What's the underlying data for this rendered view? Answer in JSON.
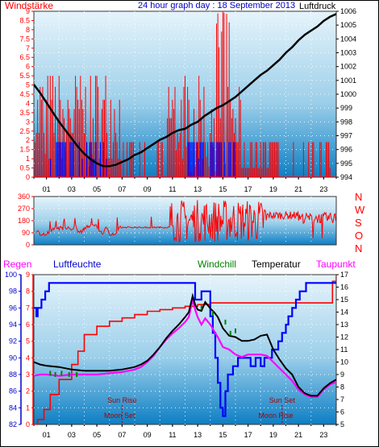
{
  "title": "24 hour graph day : 18 September 2013",
  "x_ticks": [
    "01",
    "03",
    "05",
    "07",
    "09",
    "11",
    "13",
    "15",
    "17",
    "19",
    "21",
    "23"
  ],
  "colors": {
    "panel_top": "#e6f4fb",
    "panel_bottom": "#0d7fc4",
    "wind_gust": "#ff0000",
    "wind_avg": "#0000ff",
    "pressure": "#000000",
    "direction": "#ff0000",
    "humidity": "#0000ff",
    "windchill": "#008000",
    "temperature": "#000000",
    "dewpoint": "#ff00ff",
    "rain": "#ff0000",
    "astro": "#aa0000",
    "axis_red": "#ff0000",
    "axis_blue": "#0000cc",
    "axis_black": "#000000"
  },
  "chart_data": [
    {
      "type": "bar",
      "left_label": "Windstärke",
      "right_label": "Luftdruck",
      "x_range": [
        0,
        24
      ],
      "y_left_range": [
        0,
        9
      ],
      "y_left_ticks": [
        "0",
        "0.5",
        "1",
        "1.5",
        "2",
        "2.5",
        "3",
        "3.5",
        "4",
        "4.5",
        "5",
        "5.5",
        "6",
        "6.5",
        "7",
        "7.5",
        "8",
        "8.5",
        "9"
      ],
      "y_right_range": [
        994,
        1006
      ],
      "y_right_ticks": [
        "994",
        "995",
        "996",
        "997",
        "998",
        "999",
        "1000",
        "1001",
        "1002",
        "1003",
        "1004",
        "1005",
        "1006"
      ],
      "pressure": {
        "x": [
          0,
          0.5,
          1,
          1.5,
          2,
          2.5,
          3,
          3.5,
          4,
          4.5,
          5,
          5.5,
          6,
          6.5,
          7,
          7.5,
          8,
          8.5,
          9,
          9.5,
          10,
          10.5,
          11,
          11.5,
          12,
          12.5,
          13,
          13.5,
          14,
          14.5,
          15,
          15.5,
          16,
          16.5,
          17,
          17.5,
          18,
          18.5,
          19,
          19.5,
          20,
          20.5,
          21,
          21.5,
          22,
          22.5,
          23,
          23.5,
          24
        ],
        "y": [
          1000.7,
          1000.1,
          999.4,
          998.7,
          998.0,
          997.4,
          996.8,
          996.2,
          995.7,
          995.3,
          995.0,
          994.8,
          994.8,
          994.9,
          995.1,
          995.3,
          995.6,
          995.8,
          996.1,
          996.4,
          996.7,
          996.9,
          997.2,
          997.4,
          997.5,
          997.8,
          998.0,
          998.4,
          998.7,
          999.0,
          999.2,
          999.5,
          999.8,
          1000.2,
          1000.6,
          1001.0,
          1001.4,
          1001.7,
          1002.1,
          1002.5,
          1003.0,
          1003.4,
          1003.9,
          1004.3,
          1004.6,
          1004.9,
          1005.3,
          1005.6,
          1005.8
        ]
      }
    },
    {
      "type": "line",
      "left_label": "",
      "right_letters": [
        "N",
        "W",
        "S",
        "O",
        "N"
      ],
      "x_range": [
        0,
        24
      ],
      "y_range": [
        0,
        360
      ],
      "y_ticks": [
        "0",
        "90",
        "180",
        "270",
        "360"
      ]
    },
    {
      "type": "line",
      "labels": {
        "rain": "Regen",
        "humidity": "Luftfeuchte",
        "windchill": "Windchill",
        "temperature": "Temperatur",
        "dewpoint": "Taupunkt"
      },
      "x_range": [
        0,
        24
      ],
      "humidity_range": [
        82,
        100
      ],
      "humidity_ticks": [
        "82",
        "84",
        "86",
        "88",
        "90",
        "92",
        "94",
        "96",
        "98",
        "100"
      ],
      "rain_range": [
        0,
        9
      ],
      "rain_ticks": [
        "0",
        "1",
        "2",
        "3",
        "4",
        "5",
        "6",
        "7",
        "8",
        "9"
      ],
      "temp_range": [
        5,
        17
      ],
      "temp_ticks": [
        "5",
        "6",
        "7",
        "8",
        "9",
        "10",
        "11",
        "12",
        "13",
        "14",
        "15",
        "16",
        "17"
      ],
      "temperature": {
        "x": [
          0,
          0.5,
          1,
          2,
          3,
          4,
          5,
          6,
          7,
          8,
          8.5,
          9,
          9.5,
          10,
          10.5,
          11,
          11.5,
          12,
          12.3,
          12.6,
          12.8,
          13,
          13.3,
          13.6,
          14,
          14.3,
          14.6,
          15,
          15.5,
          16,
          16.5,
          17,
          17.5,
          18,
          18.5,
          19,
          19.5,
          20,
          20.5,
          21,
          21.5,
          22,
          22.5,
          23,
          23.5,
          24
        ],
        "y": [
          10.0,
          9.8,
          9.7,
          9.6,
          9.4,
          9.3,
          9.3,
          9.3,
          9.4,
          9.6,
          9.8,
          10.1,
          10.6,
          11.2,
          11.9,
          12.5,
          13.0,
          13.6,
          14.0,
          15.3,
          14.6,
          14.2,
          14.1,
          14.8,
          14.3,
          14.0,
          13.6,
          12.7,
          12.1,
          12.0,
          11.7,
          11.7,
          11.8,
          12.1,
          12.2,
          11.0,
          10.2,
          9.5,
          9.0,
          8.0,
          7.5,
          7.3,
          7.3,
          7.9,
          8.3,
          8.6
        ]
      },
      "dewpoint": {
        "x": [
          0,
          0.5,
          1,
          2,
          3,
          4,
          5,
          6,
          7,
          8,
          8.5,
          9,
          9.5,
          10,
          10.5,
          11,
          11.5,
          12,
          12.3,
          12.6,
          12.8,
          13,
          13.3,
          13.6,
          14,
          14.3,
          14.6,
          15,
          15.5,
          16,
          16.5,
          17,
          17.5,
          18,
          18.5,
          19,
          19.5,
          20,
          20.5,
          21,
          21.5,
          22,
          22.5,
          23,
          23.5,
          24
        ],
        "y": [
          8.9,
          9.0,
          9.0,
          8.9,
          9.0,
          9.0,
          9.0,
          9.1,
          9.2,
          9.4,
          9.6,
          10.0,
          10.5,
          11.2,
          11.8,
          12.3,
          12.7,
          13.2,
          13.6,
          15.0,
          14.2,
          13.6,
          13.0,
          13.5,
          13.0,
          12.5,
          12.0,
          11.2,
          11.0,
          10.6,
          10.4,
          10.6,
          10.6,
          10.6,
          10.5,
          10.0,
          9.5,
          9.0,
          8.5,
          7.8,
          7.4,
          7.2,
          7.2,
          7.8,
          8.2,
          8.4
        ]
      },
      "humidity": {
        "x": [
          0,
          0.2,
          0.3,
          0.6,
          0.9,
          1.2,
          8,
          12.7,
          12.8,
          13.3,
          13.7,
          14,
          14.2,
          14.4,
          14.6,
          14.8,
          15,
          15.2,
          15.4,
          15.8,
          16.2,
          16.8,
          17.2,
          17.6,
          18,
          18.3,
          18.6,
          18.9,
          19.1,
          19.4,
          19.7,
          20,
          20.2,
          20.5,
          20.8,
          21.1,
          21.4,
          21.6,
          22,
          23,
          24
        ],
        "y": [
          96,
          95,
          96,
          97,
          98,
          99,
          99,
          99,
          97,
          98,
          98,
          95,
          93,
          90,
          87,
          84,
          83,
          86,
          88,
          89,
          90,
          90,
          89,
          90,
          89,
          90,
          90,
          91,
          91,
          92,
          93,
          94,
          95,
          96,
          97,
          98,
          98,
          99,
          99,
          99,
          99
        ]
      },
      "rain": {
        "x": [
          0,
          0.3,
          0.8,
          1.3,
          2,
          3,
          3.5,
          4,
          5,
          6,
          7,
          8,
          9,
          10,
          11,
          12,
          13,
          14,
          15,
          16,
          17,
          18,
          19,
          20,
          21,
          22,
          23,
          23.7,
          24
        ],
        "y": [
          0,
          0.3,
          0.9,
          1.8,
          2.7,
          3.6,
          4.4,
          5.4,
          5.9,
          6.2,
          6.4,
          6.6,
          6.8,
          6.9,
          7.0,
          7.1,
          7.2,
          7.3,
          7.3,
          7.3,
          7.3,
          7.3,
          7.3,
          7.3,
          7.3,
          7.3,
          7.3,
          8.6,
          8.9
        ]
      },
      "astro": {
        "sun_rise": {
          "label": "Sun Rise",
          "x": 7.0
        },
        "moon_set": {
          "label": "Moon Set",
          "x": 6.8
        },
        "sun_set": {
          "label": "Sun Set",
          "x": 19.7
        },
        "moon_rise": {
          "label": "Moon Rise",
          "x": 19.2
        }
      }
    }
  ]
}
